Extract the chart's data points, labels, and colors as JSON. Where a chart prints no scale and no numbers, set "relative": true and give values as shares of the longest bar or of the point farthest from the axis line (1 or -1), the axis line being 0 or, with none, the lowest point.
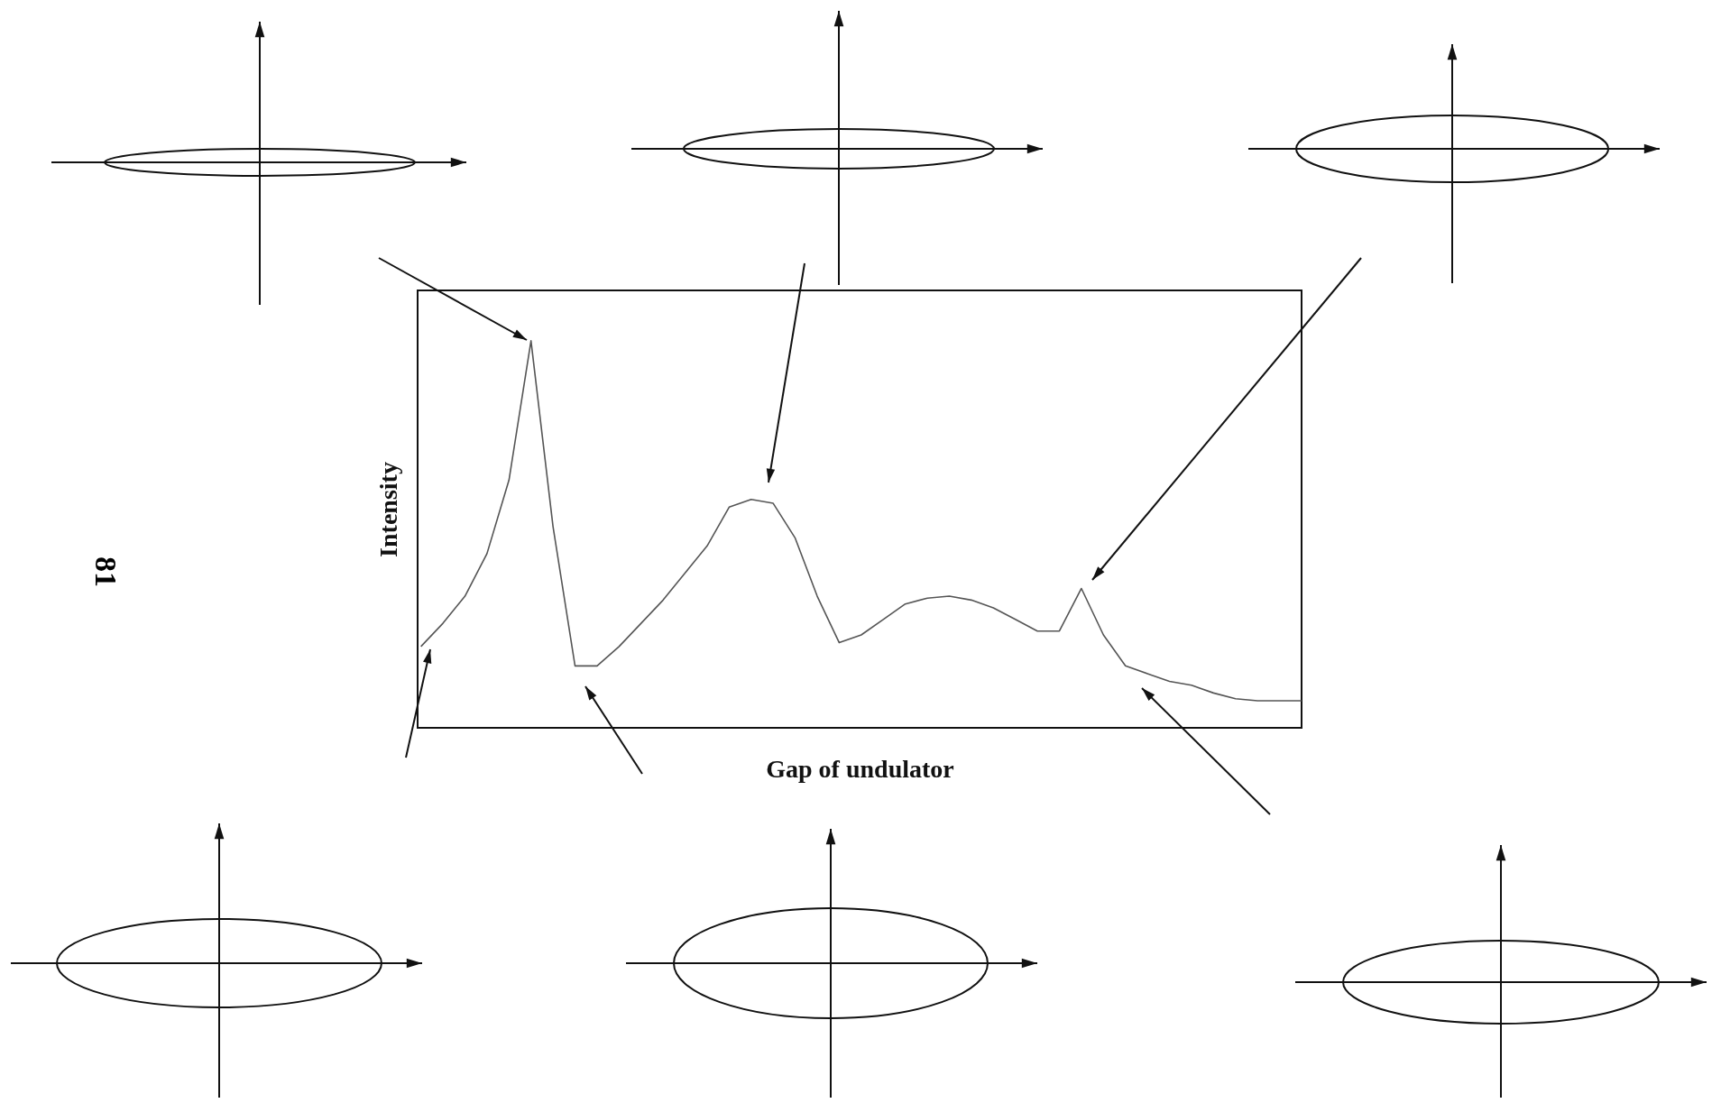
{
  "chart_data": {
    "type": "line",
    "relative": true,
    "xlabel": "Gap of undulator",
    "ylabel": "Intensity",
    "annotations": [
      "81"
    ],
    "categories": [
      null,
      null,
      null,
      null,
      null,
      null,
      null,
      null,
      null,
      null,
      null,
      null,
      null,
      null,
      null,
      null,
      null,
      null,
      null,
      null,
      null,
      null,
      null,
      null,
      null,
      null,
      null,
      null,
      null,
      null,
      null,
      null,
      null,
      null,
      null,
      null,
      null,
      null,
      null,
      null,
      null
    ],
    "series": [
      {
        "color": "#555555",
        "values": [
          0.21,
          0.27,
          0.34,
          0.45,
          0.64,
          1,
          0.52,
          0.16,
          0.16,
          0.21,
          0.27,
          0.33,
          0.4,
          0.47,
          0.57,
          0.59,
          0.58,
          0.49,
          0.34,
          0.22,
          0.24,
          0.28,
          0.32,
          0.335,
          0.34,
          0.33,
          0.31,
          0.28,
          0.25,
          0.25,
          0.36,
          0.24,
          0.16,
          0.14,
          0.12,
          0.11,
          0.09,
          0.075,
          0.07,
          0.07,
          0.07
        ]
      }
    ],
    "grid": false,
    "legend": false,
    "marker": "none",
    "line_style": "solid"
  }
}
